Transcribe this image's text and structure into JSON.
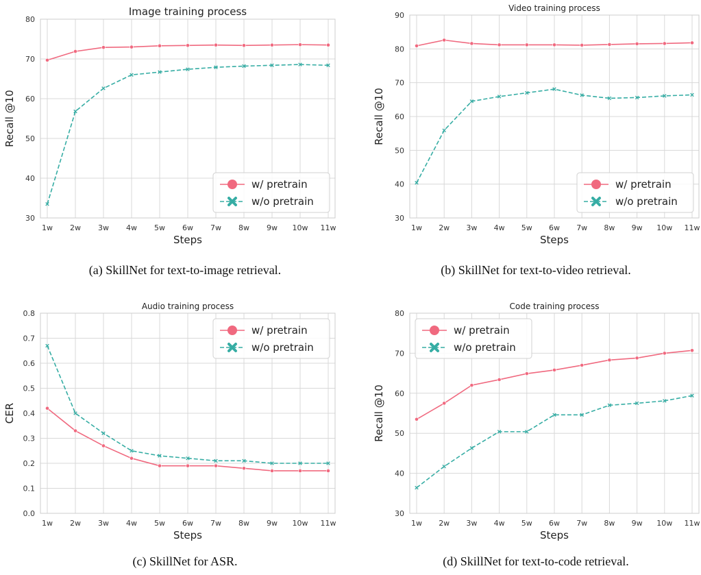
{
  "chart_data": [
    {
      "type": "line",
      "title": "Image training process",
      "xlabel": "Steps",
      "ylabel": "Recall @10",
      "categories": [
        "1w",
        "2w",
        "3w",
        "4w",
        "5w",
        "6w",
        "7w",
        "8w",
        "9w",
        "10w",
        "11w"
      ],
      "ylim": [
        30,
        80
      ],
      "yticks": [
        30,
        40,
        50,
        60,
        70,
        80
      ],
      "grid": true,
      "legend_position": "lower-right",
      "series": [
        {
          "name": "w/ pretrain",
          "color": "#f0697f",
          "marker": "circle",
          "dashed": false,
          "values": [
            69.7,
            71.9,
            72.9,
            73.0,
            73.3,
            73.4,
            73.5,
            73.4,
            73.5,
            73.6,
            73.5
          ]
        },
        {
          "name": "w/o pretrain",
          "color": "#36ada4",
          "marker": "x",
          "dashed": true,
          "values": [
            33.5,
            56.8,
            62.6,
            66.0,
            66.7,
            67.4,
            67.9,
            68.2,
            68.4,
            68.6,
            68.4
          ]
        }
      ]
    },
    {
      "type": "line",
      "title": "Video training process",
      "xlabel": "Steps",
      "ylabel": "Recall @10",
      "categories": [
        "1w",
        "2w",
        "3w",
        "4w",
        "5w",
        "6w",
        "7w",
        "8w",
        "9w",
        "10w",
        "11w"
      ],
      "ylim": [
        30,
        90
      ],
      "yticks": [
        30,
        40,
        50,
        60,
        70,
        80,
        90
      ],
      "grid": true,
      "legend_position": "lower-right",
      "series": [
        {
          "name": "w/ pretrain",
          "color": "#f0697f",
          "marker": "circle",
          "dashed": false,
          "values": [
            80.9,
            82.6,
            81.6,
            81.2,
            81.2,
            81.2,
            81.1,
            81.3,
            81.5,
            81.6,
            81.8
          ]
        },
        {
          "name": "w/o pretrain",
          "color": "#36ada4",
          "marker": "x",
          "dashed": true,
          "values": [
            40.4,
            55.9,
            64.5,
            65.9,
            67.0,
            68.1,
            66.3,
            65.4,
            65.6,
            66.1,
            66.4
          ]
        }
      ]
    },
    {
      "type": "line",
      "title": "Audio training process",
      "xlabel": "Steps",
      "ylabel": "CER",
      "categories": [
        "1w",
        "2w",
        "3w",
        "4w",
        "5w",
        "6w",
        "7w",
        "8w",
        "9w",
        "10w",
        "11w"
      ],
      "ylim": [
        0.0,
        0.8
      ],
      "yticks": [
        0.0,
        0.1,
        0.2,
        0.3,
        0.4,
        0.5,
        0.6,
        0.7,
        0.8
      ],
      "ytick_labels": [
        "0.0",
        "0.1",
        "0.2",
        "0.3",
        "0.4",
        "0.5",
        "0.6",
        "0.7",
        "0.8"
      ],
      "grid": true,
      "legend_position": "upper-right",
      "series": [
        {
          "name": "w/ pretrain",
          "color": "#f0697f",
          "marker": "circle",
          "dashed": false,
          "values": [
            0.42,
            0.33,
            0.27,
            0.22,
            0.19,
            0.19,
            0.19,
            0.18,
            0.17,
            0.17,
            0.17
          ]
        },
        {
          "name": "w/o pretrain",
          "color": "#36ada4",
          "marker": "x",
          "dashed": true,
          "values": [
            0.67,
            0.4,
            0.32,
            0.25,
            0.23,
            0.22,
            0.21,
            0.21,
            0.2,
            0.2,
            0.2
          ]
        }
      ]
    },
    {
      "type": "line",
      "title": "Code training process",
      "xlabel": "Steps",
      "ylabel": "Recall @10",
      "categories": [
        "1w",
        "2w",
        "3w",
        "4w",
        "5w",
        "6w",
        "7w",
        "8w",
        "9w",
        "10w",
        "11w"
      ],
      "ylim": [
        30,
        80
      ],
      "yticks": [
        30,
        40,
        50,
        60,
        70,
        80
      ],
      "grid": true,
      "legend_position": "upper-left",
      "series": [
        {
          "name": "w/ pretrain",
          "color": "#f0697f",
          "marker": "circle",
          "dashed": false,
          "values": [
            53.5,
            57.5,
            62.0,
            63.4,
            64.9,
            65.8,
            67.0,
            68.3,
            68.8,
            70.0,
            70.7
          ]
        },
        {
          "name": "w/o pretrain",
          "color": "#36ada4",
          "marker": "x",
          "dashed": true,
          "values": [
            36.4,
            41.7,
            46.3,
            50.4,
            50.4,
            54.6,
            54.6,
            57.0,
            57.5,
            58.1,
            59.4
          ]
        }
      ]
    }
  ],
  "captions": [
    "(a)  SkillNet for text-to-image retrieval.",
    "(b)  SkillNet for text-to-video retrieval.",
    "(c)  SkillNet for ASR.",
    "(d)  SkillNet for text-to-code retrieval."
  ]
}
